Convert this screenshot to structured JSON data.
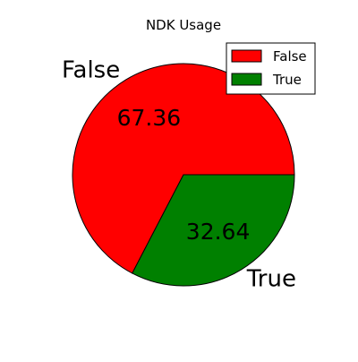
{
  "chart_data": {
    "type": "pie",
    "title": "NDK Usage",
    "categories": [
      "False",
      "True"
    ],
    "values": [
      67.36,
      32.64
    ],
    "value_labels": [
      "67.36",
      "32.64"
    ],
    "colors": [
      "#ff0000",
      "#008000"
    ],
    "start_angle_deg": 0,
    "direction": "counterclockwise",
    "legend": {
      "position": "top-right",
      "entries": [
        "False",
        "True"
      ]
    }
  }
}
